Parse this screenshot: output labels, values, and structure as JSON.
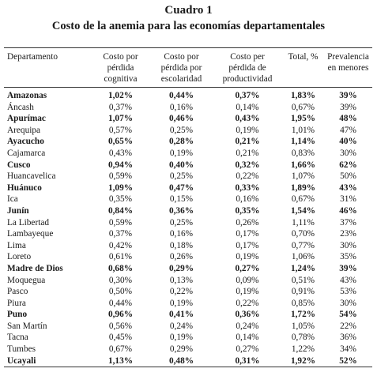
{
  "caption": {
    "number": "Cuadro 1",
    "title": "Costo de la anemia para las economías departamentales"
  },
  "table": {
    "headers": [
      {
        "lines": [
          "Departamento"
        ]
      },
      {
        "lines": [
          "Costo por",
          "pérdida",
          "cognitiva"
        ]
      },
      {
        "lines": [
          "Costo por",
          "pérdida por",
          "escolaridad"
        ]
      },
      {
        "lines": [
          "Costo per",
          "pérdida de",
          "productividad"
        ]
      },
      {
        "lines": [
          "Total, %"
        ]
      },
      {
        "lines": [
          "Prevalencia",
          "en menores"
        ]
      }
    ],
    "rows": [
      {
        "cells": [
          "Amazonas",
          "1,02%",
          "0,44%",
          "0,37%",
          "1,83%",
          "39%"
        ],
        "bold": true
      },
      {
        "cells": [
          "Áncash",
          "0,37%",
          "0,16%",
          "0,14%",
          "0,67%",
          "39%"
        ],
        "bold": false
      },
      {
        "cells": [
          "Apurímac",
          "1,07%",
          "0,46%",
          "0,43%",
          "1,95%",
          "48%"
        ],
        "bold": true
      },
      {
        "cells": [
          "Arequipa",
          "0,57%",
          "0,25%",
          "0,19%",
          "1,01%",
          "47%"
        ],
        "bold": false
      },
      {
        "cells": [
          "Ayacucho",
          "0,65%",
          "0,28%",
          "0,21%",
          "1,14%",
          "40%"
        ],
        "bold": true
      },
      {
        "cells": [
          "Cajamarca",
          "0,43%",
          "0,19%",
          "0,21%",
          "0,83%",
          "30%"
        ],
        "bold": false
      },
      {
        "cells": [
          "Cusco",
          "0,94%",
          "0,40%",
          "0,32%",
          "1,66%",
          "62%"
        ],
        "bold": true
      },
      {
        "cells": [
          "Huancavelica",
          "0,59%",
          "0,25%",
          "0,22%",
          "1,07%",
          "50%"
        ],
        "bold": false
      },
      {
        "cells": [
          "Huánuco",
          "1,09%",
          "0,47%",
          "0,33%",
          "1,89%",
          "43%"
        ],
        "bold": true
      },
      {
        "cells": [
          "Ica",
          "0,35%",
          "0,15%",
          "0,16%",
          "0,67%",
          "31%"
        ],
        "bold": false
      },
      {
        "cells": [
          "Junín",
          "0,84%",
          "0,36%",
          "0,35%",
          "1,54%",
          "46%"
        ],
        "bold": true
      },
      {
        "cells": [
          "La Libertad",
          "0,59%",
          "0,25%",
          "0,26%",
          "1,11%",
          "37%"
        ],
        "bold": false
      },
      {
        "cells": [
          "Lambayeque",
          "0,37%",
          "0,16%",
          "0,17%",
          "0,70%",
          "23%"
        ],
        "bold": false
      },
      {
        "cells": [
          "Lima",
          "0,42%",
          "0,18%",
          "0,17%",
          "0,77%",
          "30%"
        ],
        "bold": false
      },
      {
        "cells": [
          "Loreto",
          "0,61%",
          "0,26%",
          "0,19%",
          "1,06%",
          "35%"
        ],
        "bold": false
      },
      {
        "cells": [
          "Madre de Dios",
          "0,68%",
          "0,29%",
          "0,27%",
          "1,24%",
          "39%"
        ],
        "bold": true
      },
      {
        "cells": [
          "Moquegua",
          "0,30%",
          "0,13%",
          "0,09%",
          "0,51%",
          "43%"
        ],
        "bold": false
      },
      {
        "cells": [
          "Pasco",
          "0,50%",
          "0,22%",
          "0,19%",
          "0,91%",
          "53%"
        ],
        "bold": false
      },
      {
        "cells": [
          "Piura",
          "0,44%",
          "0,19%",
          "0,22%",
          "0,85%",
          "30%"
        ],
        "bold": false
      },
      {
        "cells": [
          "Puno",
          "0,96%",
          "0,41%",
          "0,36%",
          "1,72%",
          "54%"
        ],
        "bold": true
      },
      {
        "cells": [
          "San Martín",
          "0,56%",
          "0,24%",
          "0,24%",
          "1,05%",
          "22%"
        ],
        "bold": false
      },
      {
        "cells": [
          "Tacna",
          "0,45%",
          "0,19%",
          "0,14%",
          "0,78%",
          "36%"
        ],
        "bold": false
      },
      {
        "cells": [
          "Tumbes",
          "0,67%",
          "0,29%",
          "0,27%",
          "1,22%",
          "34%"
        ],
        "bold": false
      },
      {
        "cells": [
          "Ucayali",
          "1,13%",
          "0,48%",
          "0,31%",
          "1,92%",
          "52%"
        ],
        "bold": true
      }
    ]
  }
}
